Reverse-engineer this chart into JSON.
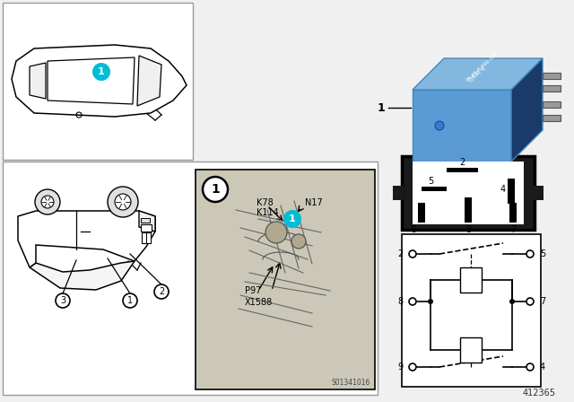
{
  "bg_color": "#f0f0f0",
  "white": "#ffffff",
  "black": "#000000",
  "blue_relay": "#5b9bd5",
  "blue_relay_top": "#82b8e0",
  "blue_relay_dark": "#3a6ea8",
  "teal_badge": "#00bcd4",
  "figure_number": "412365",
  "panel_ec": "#999999",
  "k78": "K78",
  "k114": "K114",
  "n17": "N17",
  "p97": "P97",
  "x1588": "X1588",
  "s01341016": "S01341016"
}
